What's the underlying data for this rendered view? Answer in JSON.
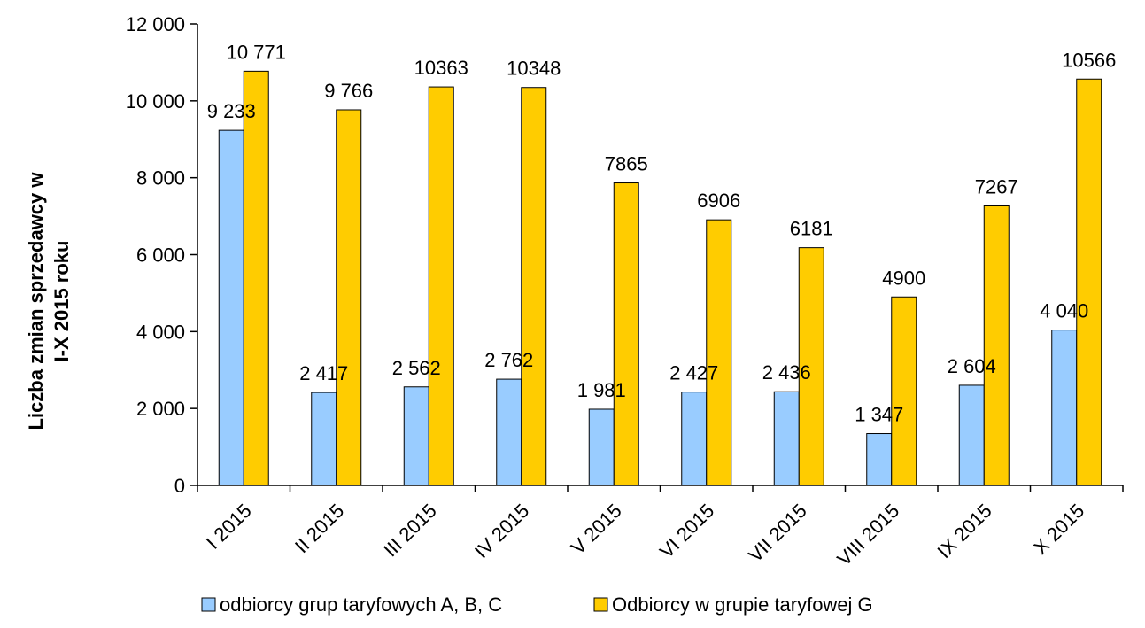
{
  "chart_data": {
    "type": "bar",
    "title": "",
    "xlabel": "",
    "ylabel": [
      "Liczba zmian sprzedawcy w",
      "I-X 2015 roku"
    ],
    "ylim": [
      0,
      12000
    ],
    "yticks": [
      0,
      2000,
      4000,
      6000,
      8000,
      10000,
      12000
    ],
    "ytick_labels": [
      "0",
      "2 000",
      "4 000",
      "6 000",
      "8 000",
      "10 000",
      "12 000"
    ],
    "categories": [
      "I 2015",
      "II 2015",
      "III 2015",
      "IV  2015",
      "V  2015",
      "VI 2015",
      "VII 2015",
      "VIII 2015",
      "IX 2015",
      "X 2015"
    ],
    "legend_position": "bottom",
    "grid": false,
    "series": [
      {
        "name": "odbiorcy grup taryfowych A, B, C",
        "color": "#99ccff",
        "values": [
          9233,
          2417,
          2562,
          2762,
          1981,
          2427,
          2436,
          1347,
          2604,
          4040
        ],
        "labels": [
          "9 233",
          "2 417",
          "2 562",
          "2 762",
          "1 981",
          "2 427",
          "2 436",
          "1 347",
          "2 604",
          "4 040"
        ]
      },
      {
        "name": "Odbiorcy w grupie taryfowej G",
        "color": "#ffcc00",
        "values": [
          10771,
          9766,
          10363,
          10348,
          7865,
          6906,
          6181,
          4900,
          7267,
          10566
        ],
        "labels": [
          "10 771",
          "9 766",
          "10363",
          "10348",
          "7865",
          "6906",
          "6181",
          "4900",
          "7267",
          "10566"
        ]
      }
    ]
  }
}
